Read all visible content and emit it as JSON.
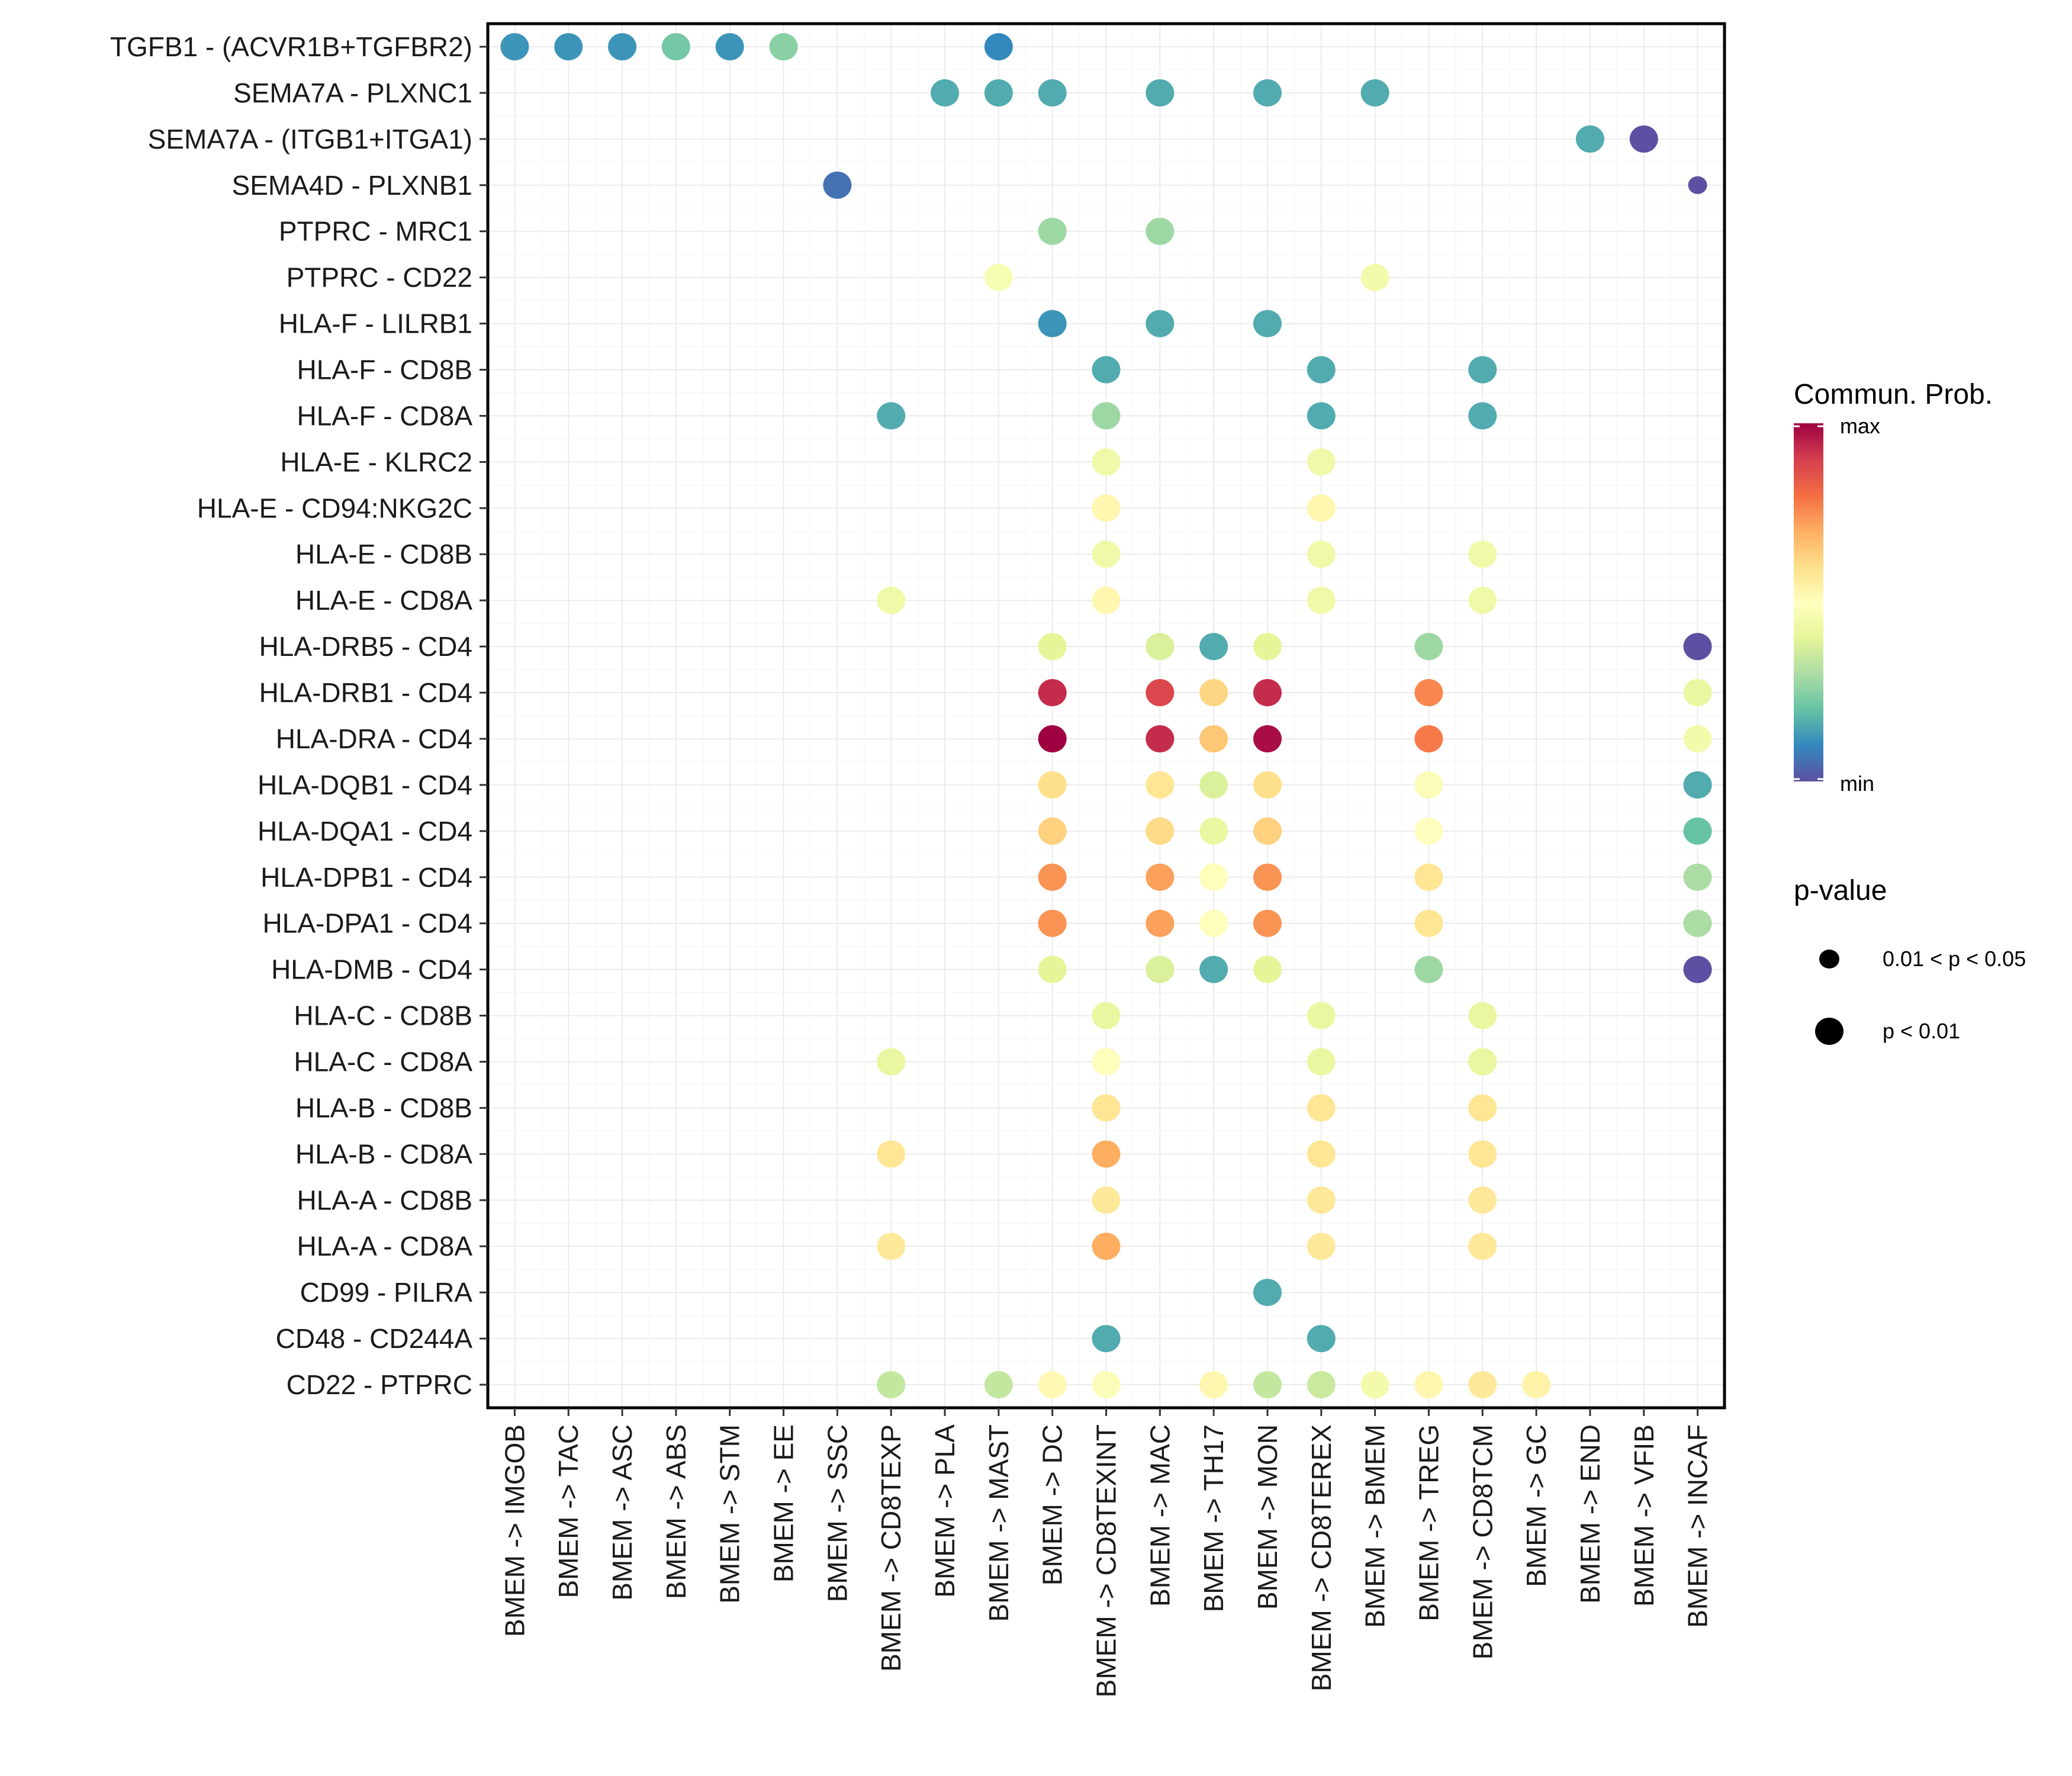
{
  "chart_data": {
    "type": "scatter",
    "subtype": "dot-matrix",
    "title": "",
    "xlabel": "",
    "ylabel": "",
    "grid": true,
    "x_categories": [
      "BMEM -> IMGOB",
      "BMEM -> TAC",
      "BMEM -> ASC",
      "BMEM -> ABS",
      "BMEM -> STM",
      "BMEM -> EE",
      "BMEM -> SSC",
      "BMEM -> CD8TEXP",
      "BMEM -> PLA",
      "BMEM -> MAST",
      "BMEM -> DC",
      "BMEM -> CD8TEXINT",
      "BMEM -> MAC",
      "BMEM -> TH17",
      "BMEM -> MON",
      "BMEM -> CD8TEREX",
      "BMEM -> BMEM",
      "BMEM -> TREG",
      "BMEM -> CD8TCM",
      "BMEM -> GC",
      "BMEM -> END",
      "BMEM -> VFIB",
      "BMEM -> INCAF"
    ],
    "y_categories": [
      "TGFB1 - (ACVR1B+TGFBR2)",
      "SEMA7A - PLXNC1",
      "SEMA7A - (ITGB1+ITGA1)",
      "SEMA4D - PLXNB1",
      "PTPRC - MRC1",
      "PTPRC - CD22",
      "HLA-F - LILRB1",
      "HLA-F - CD8B",
      "HLA-F - CD8A",
      "HLA-E - KLRC2",
      "HLA-E - CD94:NKG2C",
      "HLA-E - CD8B",
      "HLA-E - CD8A",
      "HLA-DRB5 - CD4",
      "HLA-DRB1 - CD4",
      "HLA-DRA - CD4",
      "HLA-DQB1 - CD4",
      "HLA-DQA1 - CD4",
      "HLA-DPB1 - CD4",
      "HLA-DPA1 - CD4",
      "HLA-DMB - CD4",
      "HLA-C - CD8B",
      "HLA-C - CD8A",
      "HLA-B - CD8B",
      "HLA-B - CD8A",
      "HLA-A - CD8B",
      "HLA-A - CD8A",
      "CD99 - PILRA",
      "CD48 - CD244A",
      "CD22 - PTPRC"
    ],
    "value_note": "prob is normalized communication probability on the color scale (0 = min, 1 = max); p is the p-value class",
    "points": [
      {
        "y": "TGFB1 - (ACVR1B+TGFBR2)",
        "x": "BMEM -> IMGOB",
        "prob": 0.12,
        "p": "p < 0.01"
      },
      {
        "y": "TGFB1 - (ACVR1B+TGFBR2)",
        "x": "BMEM -> TAC",
        "prob": 0.12,
        "p": "p < 0.01"
      },
      {
        "y": "TGFB1 - (ACVR1B+TGFBR2)",
        "x": "BMEM -> ASC",
        "prob": 0.12,
        "p": "p < 0.01"
      },
      {
        "y": "TGFB1 - (ACVR1B+TGFBR2)",
        "x": "BMEM -> ABS",
        "prob": 0.22,
        "p": "p < 0.01"
      },
      {
        "y": "TGFB1 - (ACVR1B+TGFBR2)",
        "x": "BMEM -> STM",
        "prob": 0.12,
        "p": "p < 0.01"
      },
      {
        "y": "TGFB1 - (ACVR1B+TGFBR2)",
        "x": "BMEM -> EE",
        "prob": 0.25,
        "p": "p < 0.01"
      },
      {
        "y": "TGFB1 - (ACVR1B+TGFBR2)",
        "x": "BMEM -> MAST",
        "prob": 0.1,
        "p": "p < 0.01"
      },
      {
        "y": "SEMA7A - PLXNC1",
        "x": "BMEM -> PLA",
        "prob": 0.16,
        "p": "p < 0.01"
      },
      {
        "y": "SEMA7A - PLXNC1",
        "x": "BMEM -> MAST",
        "prob": 0.16,
        "p": "p < 0.01"
      },
      {
        "y": "SEMA7A - PLXNC1",
        "x": "BMEM -> DC",
        "prob": 0.16,
        "p": "p < 0.01"
      },
      {
        "y": "SEMA7A - PLXNC1",
        "x": "BMEM -> MAC",
        "prob": 0.16,
        "p": "p < 0.01"
      },
      {
        "y": "SEMA7A - PLXNC1",
        "x": "BMEM -> MON",
        "prob": 0.16,
        "p": "p < 0.01"
      },
      {
        "y": "SEMA7A - PLXNC1",
        "x": "BMEM -> BMEM",
        "prob": 0.16,
        "p": "p < 0.01"
      },
      {
        "y": "SEMA7A - (ITGB1+ITGA1)",
        "x": "BMEM -> END",
        "prob": 0.16,
        "p": "p < 0.01"
      },
      {
        "y": "SEMA7A - (ITGB1+ITGA1)",
        "x": "BMEM -> VFIB",
        "prob": 0.0,
        "p": "p < 0.01"
      },
      {
        "y": "SEMA4D - PLXNB1",
        "x": "BMEM -> SSC",
        "prob": 0.06,
        "p": "p < 0.01"
      },
      {
        "y": "SEMA4D - PLXNB1",
        "x": "BMEM -> INCAF",
        "prob": 0.0,
        "p": "0.01 < p < 0.05"
      },
      {
        "y": "PTPRC - MRC1",
        "x": "BMEM -> DC",
        "prob": 0.28,
        "p": "p < 0.01"
      },
      {
        "y": "PTPRC - MRC1",
        "x": "BMEM -> MAC",
        "prob": 0.28,
        "p": "p < 0.01"
      },
      {
        "y": "PTPRC - CD22",
        "x": "BMEM -> MAST",
        "prob": 0.47,
        "p": "p < 0.01"
      },
      {
        "y": "PTPRC - CD22",
        "x": "BMEM -> BMEM",
        "prob": 0.45,
        "p": "p < 0.01"
      },
      {
        "y": "HLA-F - LILRB1",
        "x": "BMEM -> DC",
        "prob": 0.12,
        "p": "p < 0.01"
      },
      {
        "y": "HLA-F - LILRB1",
        "x": "BMEM -> MAC",
        "prob": 0.16,
        "p": "p < 0.01"
      },
      {
        "y": "HLA-F - LILRB1",
        "x": "BMEM -> MON",
        "prob": 0.16,
        "p": "p < 0.01"
      },
      {
        "y": "HLA-F - CD8B",
        "x": "BMEM -> CD8TEXINT",
        "prob": 0.16,
        "p": "p < 0.01"
      },
      {
        "y": "HLA-F - CD8B",
        "x": "BMEM -> CD8TEREX",
        "prob": 0.16,
        "p": "p < 0.01"
      },
      {
        "y": "HLA-F - CD8B",
        "x": "BMEM -> CD8TCM",
        "prob": 0.16,
        "p": "p < 0.01"
      },
      {
        "y": "HLA-F - CD8A",
        "x": "BMEM -> CD8TEXP",
        "prob": 0.16,
        "p": "p < 0.01"
      },
      {
        "y": "HLA-F - CD8A",
        "x": "BMEM -> CD8TEXINT",
        "prob": 0.28,
        "p": "p < 0.01"
      },
      {
        "y": "HLA-F - CD8A",
        "x": "BMEM -> CD8TEREX",
        "prob": 0.16,
        "p": "p < 0.01"
      },
      {
        "y": "HLA-F - CD8A",
        "x": "BMEM -> CD8TCM",
        "prob": 0.16,
        "p": "p < 0.01"
      },
      {
        "y": "HLA-E - KLRC2",
        "x": "BMEM -> CD8TEXINT",
        "prob": 0.44,
        "p": "p < 0.01"
      },
      {
        "y": "HLA-E - KLRC2",
        "x": "BMEM -> CD8TEREX",
        "prob": 0.44,
        "p": "p < 0.01"
      },
      {
        "y": "HLA-E - CD94:NKG2C",
        "x": "BMEM -> CD8TEXINT",
        "prob": 0.53,
        "p": "p < 0.01"
      },
      {
        "y": "HLA-E - CD94:NKG2C",
        "x": "BMEM -> CD8TEREX",
        "prob": 0.53,
        "p": "p < 0.01"
      },
      {
        "y": "HLA-E - CD8B",
        "x": "BMEM -> CD8TEXINT",
        "prob": 0.44,
        "p": "p < 0.01"
      },
      {
        "y": "HLA-E - CD8B",
        "x": "BMEM -> CD8TEREX",
        "prob": 0.44,
        "p": "p < 0.01"
      },
      {
        "y": "HLA-E - CD8B",
        "x": "BMEM -> CD8TCM",
        "prob": 0.44,
        "p": "p < 0.01"
      },
      {
        "y": "HLA-E - CD8A",
        "x": "BMEM -> CD8TEXP",
        "prob": 0.44,
        "p": "p < 0.01"
      },
      {
        "y": "HLA-E - CD8A",
        "x": "BMEM -> CD8TEXINT",
        "prob": 0.53,
        "p": "p < 0.01"
      },
      {
        "y": "HLA-E - CD8A",
        "x": "BMEM -> CD8TEREX",
        "prob": 0.44,
        "p": "p < 0.01"
      },
      {
        "y": "HLA-E - CD8A",
        "x": "BMEM -> CD8TCM",
        "prob": 0.44,
        "p": "p < 0.01"
      },
      {
        "y": "HLA-DRB5 - CD4",
        "x": "BMEM -> DC",
        "prob": 0.4,
        "p": "p < 0.01"
      },
      {
        "y": "HLA-DRB5 - CD4",
        "x": "BMEM -> MAC",
        "prob": 0.38,
        "p": "p < 0.01"
      },
      {
        "y": "HLA-DRB5 - CD4",
        "x": "BMEM -> TH17",
        "prob": 0.16,
        "p": "p < 0.01"
      },
      {
        "y": "HLA-DRB5 - CD4",
        "x": "BMEM -> MON",
        "prob": 0.4,
        "p": "p < 0.01"
      },
      {
        "y": "HLA-DRB5 - CD4",
        "x": "BMEM -> TREG",
        "prob": 0.28,
        "p": "p < 0.01"
      },
      {
        "y": "HLA-DRB5 - CD4",
        "x": "BMEM -> INCAF",
        "prob": 0.0,
        "p": "p < 0.01"
      },
      {
        "y": "HLA-DRB1 - CD4",
        "x": "BMEM -> DC",
        "prob": 0.93,
        "p": "p < 0.01"
      },
      {
        "y": "HLA-DRB1 - CD4",
        "x": "BMEM -> MAC",
        "prob": 0.88,
        "p": "p < 0.01"
      },
      {
        "y": "HLA-DRB1 - CD4",
        "x": "BMEM -> TH17",
        "prob": 0.62,
        "p": "p < 0.01"
      },
      {
        "y": "HLA-DRB1 - CD4",
        "x": "BMEM -> MON",
        "prob": 0.93,
        "p": "p < 0.01"
      },
      {
        "y": "HLA-DRB1 - CD4",
        "x": "BMEM -> TREG",
        "prob": 0.76,
        "p": "p < 0.01"
      },
      {
        "y": "HLA-DRB1 - CD4",
        "x": "BMEM -> INCAF",
        "prob": 0.42,
        "p": "p < 0.01"
      },
      {
        "y": "HLA-DRA - CD4",
        "x": "BMEM -> DC",
        "prob": 1.0,
        "p": "p < 0.01"
      },
      {
        "y": "HLA-DRA - CD4",
        "x": "BMEM -> MAC",
        "prob": 0.93,
        "p": "p < 0.01"
      },
      {
        "y": "HLA-DRA - CD4",
        "x": "BMEM -> TH17",
        "prob": 0.65,
        "p": "p < 0.01"
      },
      {
        "y": "HLA-DRA - CD4",
        "x": "BMEM -> MON",
        "prob": 0.98,
        "p": "p < 0.01"
      },
      {
        "y": "HLA-DRA - CD4",
        "x": "BMEM -> TREG",
        "prob": 0.78,
        "p": "p < 0.01"
      },
      {
        "y": "HLA-DRA - CD4",
        "x": "BMEM -> INCAF",
        "prob": 0.45,
        "p": "p < 0.01"
      },
      {
        "y": "HLA-DQB1 - CD4",
        "x": "BMEM -> DC",
        "prob": 0.6,
        "p": "p < 0.01"
      },
      {
        "y": "HLA-DQB1 - CD4",
        "x": "BMEM -> MAC",
        "prob": 0.58,
        "p": "p < 0.01"
      },
      {
        "y": "HLA-DQB1 - CD4",
        "x": "BMEM -> TH17",
        "prob": 0.38,
        "p": "p < 0.01"
      },
      {
        "y": "HLA-DQB1 - CD4",
        "x": "BMEM -> MON",
        "prob": 0.6,
        "p": "p < 0.01"
      },
      {
        "y": "HLA-DQB1 - CD4",
        "x": "BMEM -> TREG",
        "prob": 0.48,
        "p": "p < 0.01"
      },
      {
        "y": "HLA-DQB1 - CD4",
        "x": "BMEM -> INCAF",
        "prob": 0.16,
        "p": "p < 0.01"
      },
      {
        "y": "HLA-DQA1 - CD4",
        "x": "BMEM -> DC",
        "prob": 0.63,
        "p": "p < 0.01"
      },
      {
        "y": "HLA-DQA1 - CD4",
        "x": "BMEM -> MAC",
        "prob": 0.61,
        "p": "p < 0.01"
      },
      {
        "y": "HLA-DQA1 - CD4",
        "x": "BMEM -> TH17",
        "prob": 0.42,
        "p": "p < 0.01"
      },
      {
        "y": "HLA-DQA1 - CD4",
        "x": "BMEM -> MON",
        "prob": 0.63,
        "p": "p < 0.01"
      },
      {
        "y": "HLA-DQA1 - CD4",
        "x": "BMEM -> TREG",
        "prob": 0.5,
        "p": "p < 0.01"
      },
      {
        "y": "HLA-DQA1 - CD4",
        "x": "BMEM -> INCAF",
        "prob": 0.2,
        "p": "p < 0.01"
      },
      {
        "y": "HLA-DPB1 - CD4",
        "x": "BMEM -> DC",
        "prob": 0.74,
        "p": "p < 0.01"
      },
      {
        "y": "HLA-DPB1 - CD4",
        "x": "BMEM -> MAC",
        "prob": 0.72,
        "p": "p < 0.01"
      },
      {
        "y": "HLA-DPB1 - CD4",
        "x": "BMEM -> TH17",
        "prob": 0.49,
        "p": "p < 0.01"
      },
      {
        "y": "HLA-DPB1 - CD4",
        "x": "BMEM -> MON",
        "prob": 0.74,
        "p": "p < 0.01"
      },
      {
        "y": "HLA-DPB1 - CD4",
        "x": "BMEM -> TREG",
        "prob": 0.58,
        "p": "p < 0.01"
      },
      {
        "y": "HLA-DPB1 - CD4",
        "x": "BMEM -> INCAF",
        "prob": 0.3,
        "p": "p < 0.01"
      },
      {
        "y": "HLA-DPA1 - CD4",
        "x": "BMEM -> DC",
        "prob": 0.74,
        "p": "p < 0.01"
      },
      {
        "y": "HLA-DPA1 - CD4",
        "x": "BMEM -> MAC",
        "prob": 0.72,
        "p": "p < 0.01"
      },
      {
        "y": "HLA-DPA1 - CD4",
        "x": "BMEM -> TH17",
        "prob": 0.49,
        "p": "p < 0.01"
      },
      {
        "y": "HLA-DPA1 - CD4",
        "x": "BMEM -> MON",
        "prob": 0.74,
        "p": "p < 0.01"
      },
      {
        "y": "HLA-DPA1 - CD4",
        "x": "BMEM -> TREG",
        "prob": 0.58,
        "p": "p < 0.01"
      },
      {
        "y": "HLA-DPA1 - CD4",
        "x": "BMEM -> INCAF",
        "prob": 0.3,
        "p": "p < 0.01"
      },
      {
        "y": "HLA-DMB - CD4",
        "x": "BMEM -> DC",
        "prob": 0.4,
        "p": "p < 0.01"
      },
      {
        "y": "HLA-DMB - CD4",
        "x": "BMEM -> MAC",
        "prob": 0.38,
        "p": "p < 0.01"
      },
      {
        "y": "HLA-DMB - CD4",
        "x": "BMEM -> TH17",
        "prob": 0.16,
        "p": "p < 0.01"
      },
      {
        "y": "HLA-DMB - CD4",
        "x": "BMEM -> MON",
        "prob": 0.4,
        "p": "p < 0.01"
      },
      {
        "y": "HLA-DMB - CD4",
        "x": "BMEM -> TREG",
        "prob": 0.28,
        "p": "p < 0.01"
      },
      {
        "y": "HLA-DMB - CD4",
        "x": "BMEM -> INCAF",
        "prob": 0.0,
        "p": "p < 0.01"
      },
      {
        "y": "HLA-C - CD8B",
        "x": "BMEM -> CD8TEXINT",
        "prob": 0.42,
        "p": "p < 0.01"
      },
      {
        "y": "HLA-C - CD8B",
        "x": "BMEM -> CD8TEREX",
        "prob": 0.42,
        "p": "p < 0.01"
      },
      {
        "y": "HLA-C - CD8B",
        "x": "BMEM -> CD8TCM",
        "prob": 0.42,
        "p": "p < 0.01"
      },
      {
        "y": "HLA-C - CD8A",
        "x": "BMEM -> CD8TEXP",
        "prob": 0.42,
        "p": "p < 0.01"
      },
      {
        "y": "HLA-C - CD8A",
        "x": "BMEM -> CD8TEXINT",
        "prob": 0.49,
        "p": "p < 0.01"
      },
      {
        "y": "HLA-C - CD8A",
        "x": "BMEM -> CD8TEREX",
        "prob": 0.42,
        "p": "p < 0.01"
      },
      {
        "y": "HLA-C - CD8A",
        "x": "BMEM -> CD8TCM",
        "prob": 0.42,
        "p": "p < 0.01"
      },
      {
        "y": "HLA-B - CD8B",
        "x": "BMEM -> CD8TEXINT",
        "prob": 0.58,
        "p": "p < 0.01"
      },
      {
        "y": "HLA-B - CD8B",
        "x": "BMEM -> CD8TEREX",
        "prob": 0.58,
        "p": "p < 0.01"
      },
      {
        "y": "HLA-B - CD8B",
        "x": "BMEM -> CD8TCM",
        "prob": 0.58,
        "p": "p < 0.01"
      },
      {
        "y": "HLA-B - CD8A",
        "x": "BMEM -> CD8TEXP",
        "prob": 0.58,
        "p": "p < 0.01"
      },
      {
        "y": "HLA-B - CD8A",
        "x": "BMEM -> CD8TEXINT",
        "prob": 0.7,
        "p": "p < 0.01"
      },
      {
        "y": "HLA-B - CD8A",
        "x": "BMEM -> CD8TEREX",
        "prob": 0.58,
        "p": "p < 0.01"
      },
      {
        "y": "HLA-B - CD8A",
        "x": "BMEM -> CD8TCM",
        "prob": 0.58,
        "p": "p < 0.01"
      },
      {
        "y": "HLA-A - CD8B",
        "x": "BMEM -> CD8TEXINT",
        "prob": 0.57,
        "p": "p < 0.01"
      },
      {
        "y": "HLA-A - CD8B",
        "x": "BMEM -> CD8TEREX",
        "prob": 0.57,
        "p": "p < 0.01"
      },
      {
        "y": "HLA-A - CD8B",
        "x": "BMEM -> CD8TCM",
        "prob": 0.57,
        "p": "p < 0.01"
      },
      {
        "y": "HLA-A - CD8A",
        "x": "BMEM -> CD8TEXP",
        "prob": 0.57,
        "p": "p < 0.01"
      },
      {
        "y": "HLA-A - CD8A",
        "x": "BMEM -> CD8TEXINT",
        "prob": 0.7,
        "p": "p < 0.01"
      },
      {
        "y": "HLA-A - CD8A",
        "x": "BMEM -> CD8TEREX",
        "prob": 0.57,
        "p": "p < 0.01"
      },
      {
        "y": "HLA-A - CD8A",
        "x": "BMEM -> CD8TCM",
        "prob": 0.57,
        "p": "p < 0.01"
      },
      {
        "y": "CD99 - PILRA",
        "x": "BMEM -> MON",
        "prob": 0.16,
        "p": "p < 0.01"
      },
      {
        "y": "CD48 - CD244A",
        "x": "BMEM -> CD8TEXINT",
        "prob": 0.16,
        "p": "p < 0.01"
      },
      {
        "y": "CD48 - CD244A",
        "x": "BMEM -> CD8TEREX",
        "prob": 0.16,
        "p": "p < 0.01"
      },
      {
        "y": "CD22 - PTPRC",
        "x": "BMEM -> CD8TEXP",
        "prob": 0.34,
        "p": "p < 0.01"
      },
      {
        "y": "CD22 - PTPRC",
        "x": "BMEM -> MAST",
        "prob": 0.34,
        "p": "p < 0.01"
      },
      {
        "y": "CD22 - PTPRC",
        "x": "BMEM -> DC",
        "prob": 0.52,
        "p": "p < 0.01"
      },
      {
        "y": "CD22 - PTPRC",
        "x": "BMEM -> CD8TEXINT",
        "prob": 0.48,
        "p": "p < 0.01"
      },
      {
        "y": "CD22 - PTPRC",
        "x": "BMEM -> TH17",
        "prob": 0.53,
        "p": "p < 0.01"
      },
      {
        "y": "CD22 - PTPRC",
        "x": "BMEM -> MON",
        "prob": 0.34,
        "p": "p < 0.01"
      },
      {
        "y": "CD22 - PTPRC",
        "x": "BMEM -> CD8TEREX",
        "prob": 0.35,
        "p": "p < 0.01"
      },
      {
        "y": "CD22 - PTPRC",
        "x": "BMEM -> BMEM",
        "prob": 0.45,
        "p": "p < 0.01"
      },
      {
        "y": "CD22 - PTPRC",
        "x": "BMEM -> TREG",
        "prob": 0.53,
        "p": "p < 0.01"
      },
      {
        "y": "CD22 - PTPRC",
        "x": "BMEM -> CD8TCM",
        "prob": 0.57,
        "p": "p < 0.01"
      },
      {
        "y": "CD22 - PTPRC",
        "x": "BMEM -> GC",
        "prob": 0.54,
        "p": "p < 0.01"
      }
    ],
    "legend": {
      "color": {
        "title": "Commun. Prob.",
        "max_label": "max",
        "min_label": "min",
        "palette": [
          "#5E4FA2",
          "#3288BD",
          "#66C2A5",
          "#ABDDA4",
          "#E6F598",
          "#FFFFBF",
          "#FEE08B",
          "#FDAE61",
          "#F46D43",
          "#D53E4F",
          "#9E0142"
        ],
        "position": "right"
      },
      "size": {
        "title": "p-value",
        "entries": [
          {
            "label": "0.01 < p < 0.05",
            "size": "small"
          },
          {
            "label": "p < 0.01",
            "size": "large"
          }
        ],
        "position": "right"
      }
    }
  }
}
